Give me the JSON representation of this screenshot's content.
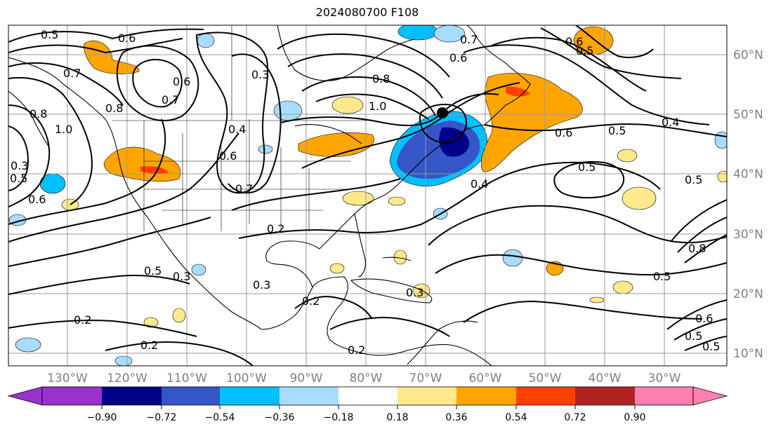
{
  "title": "2024080700 F108",
  "map": {
    "lon_labels": [
      "130°W",
      "120°W",
      "110°W",
      "100°W",
      "90°W",
      "80°W",
      "70°W",
      "60°W",
      "50°W",
      "40°W",
      "30°W"
    ],
    "lat_labels": [
      "60°N",
      "50°N",
      "40°N",
      "30°N",
      "20°N",
      "10°N"
    ],
    "contour_labels": [
      "0.5",
      "0.6",
      "0.7",
      "0.6",
      "0.7",
      "0.8",
      "0.8",
      "1.0",
      "0.5",
      "0.6",
      "0.7",
      "0.8",
      "1.0",
      "0.3",
      "0.4",
      "0.6",
      "0.7",
      "0.2",
      "0.4",
      "0.6",
      "0.6",
      "0.5",
      "0.4",
      "0.5",
      "0.5",
      "0.5",
      "0.5",
      "0.5",
      "0.3",
      "0.2",
      "0.2",
      "0.3",
      "0.2",
      "0.2",
      "0.3",
      "0.8",
      "0.5",
      "0.6",
      "0.3",
      "0.6",
      "0.5"
    ],
    "center_marker": "black dot near 67°W, 48°N",
    "colors": {
      "grid": "#9a9a9a",
      "contour": "#000000",
      "coast": "#000000"
    }
  },
  "colorbar": {
    "ticks": [
      "−0.90",
      "−0.72",
      "−0.54",
      "−0.36",
      "−0.18",
      "0.18",
      "0.36",
      "0.54",
      "0.72",
      "0.90"
    ],
    "colors": [
      "#9932cc",
      "#00008b",
      "#3456c6",
      "#00bfff",
      "#a8dcff",
      "#ffffff",
      "#ffe98c",
      "#ffa500",
      "#ff4000",
      "#b22222",
      "#ff80b0"
    ],
    "extend": "both"
  }
}
